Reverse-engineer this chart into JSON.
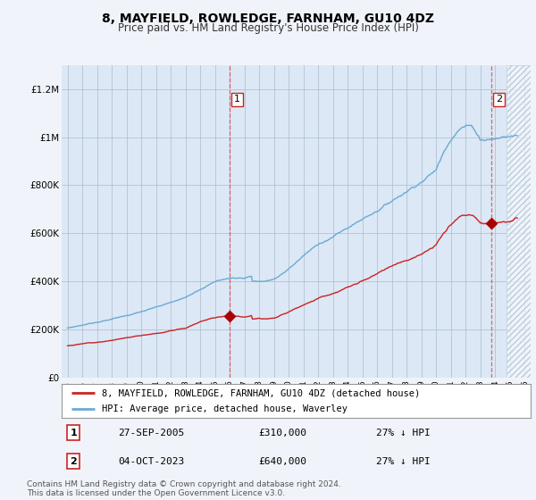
{
  "title": "8, MAYFIELD, ROWLEDGE, FARNHAM, GU10 4DZ",
  "subtitle": "Price paid vs. HM Land Registry's House Price Index (HPI)",
  "title_fontsize": 10,
  "subtitle_fontsize": 8.5,
  "background_color": "#f0f4fa",
  "plot_bg_color": "#dce8f5",
  "hatch_color": "#bbccdd",
  "ylim": [
    0,
    1300000
  ],
  "yticks": [
    0,
    200000,
    400000,
    600000,
    800000,
    1000000,
    1200000
  ],
  "ytick_labels": [
    "£0",
    "£200K",
    "£400K",
    "£600K",
    "£800K",
    "£1M",
    "£1.2M"
  ],
  "hpi_color": "#6aaad4",
  "price_color": "#cc2222",
  "dashed_line_color": "#dd4444",
  "marker1_date_x": 2006.0,
  "marker1_y": 310000,
  "marker2_date_x": 2023.75,
  "marker2_y": 640000,
  "hatch_start_x": 2024.75,
  "legend_label_price": "8, MAYFIELD, ROWLEDGE, FARNHAM, GU10 4DZ (detached house)",
  "legend_label_hpi": "HPI: Average price, detached house, Waverley",
  "annotation1": "1",
  "annotation2": "2",
  "ann1_date": "27-SEP-2005",
  "ann1_price": "£310,000",
  "ann1_hpi": "27% ↓ HPI",
  "ann2_date": "04-OCT-2023",
  "ann2_price": "£640,000",
  "ann2_hpi": "27% ↓ HPI",
  "footer": "Contains HM Land Registry data © Crown copyright and database right 2024.\nThis data is licensed under the Open Government Licence v3.0.",
  "xmin": 1994.6,
  "xmax": 2026.4,
  "xtick_years": [
    1995,
    1996,
    1997,
    1998,
    1999,
    2000,
    2001,
    2002,
    2003,
    2004,
    2005,
    2006,
    2007,
    2008,
    2009,
    2010,
    2011,
    2012,
    2013,
    2014,
    2015,
    2016,
    2017,
    2018,
    2019,
    2020,
    2021,
    2022,
    2023,
    2024,
    2025,
    2026
  ]
}
